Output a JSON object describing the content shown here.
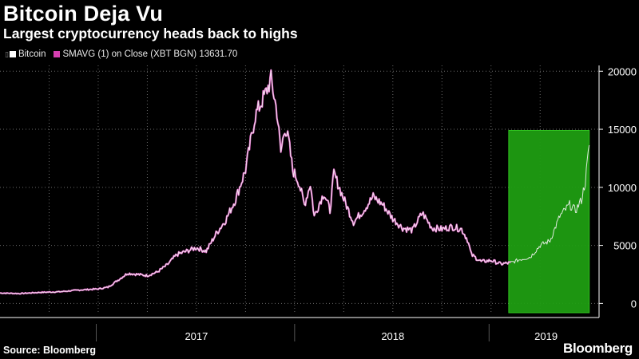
{
  "title": "Bitcoin Deja Vu",
  "subtitle": "Largest cryptocurrency heads back to highs",
  "legend": {
    "marker": "▯",
    "bitcoin_label": "Bitcoin",
    "smavg_label": "SMAVG (1)  on Close (XBT BGN) 13631.70",
    "bitcoin_color": "#ffffff",
    "smavg_color": "#d63fb0"
  },
  "source": "Source: Bloomberg",
  "brand": "Bloomberg",
  "colors": {
    "background": "#000000",
    "grid": "#6a6a6a",
    "highlight_fill": "#1f9d12",
    "highlight_stroke": "#2fc21f",
    "line_white": "#f4f4f4",
    "line_pink": "#de5fc4"
  },
  "chart_data": {
    "type": "line",
    "title": "Bitcoin Deja Vu",
    "subtitle": "Largest cryptocurrency heads back to highs",
    "xlabel": "",
    "ylabel": "",
    "xlim": [
      2016.5,
      2019.55
    ],
    "ylim": [
      -800,
      20500
    ],
    "yticks": [
      0,
      5000,
      10000,
      15000,
      20000
    ],
    "ytick_labels": [
      "0",
      "5000",
      "10000",
      "15000",
      "20000"
    ],
    "xtick_labels": [
      {
        "label": "2017",
        "value": 2017.5
      },
      {
        "label": "2018",
        "value": 2018.5
      },
      {
        "label": "2019",
        "value": 2019.28
      }
    ],
    "year_separators": [
      2016.99,
      2018.0,
      2018.99
    ],
    "vertical_gridlines": [
      2016.75,
      2017.0,
      2017.25,
      2017.5,
      2017.75,
      2018.0,
      2018.25,
      2018.5,
      2018.75,
      2019.0,
      2019.25
    ],
    "highlight_region": {
      "x": [
        2019.09,
        2019.5
      ],
      "y": [
        -800,
        14900
      ]
    },
    "series": [
      {
        "name": "Bitcoin",
        "color": "#ffffff",
        "x": [
          2016.5,
          2016.6,
          2016.7,
          2016.8,
          2016.9,
          2017.0,
          2017.05,
          2017.1,
          2017.15,
          2017.2,
          2017.25,
          2017.3,
          2017.35,
          2017.4,
          2017.45,
          2017.5,
          2017.55,
          2017.6,
          2017.65,
          2017.7,
          2017.75,
          2017.8,
          2017.85,
          2017.88,
          2017.91,
          2017.93,
          2017.95,
          2017.97,
          2017.99,
          2018.02,
          2018.05,
          2018.08,
          2018.1,
          2018.13,
          2018.15,
          2018.18,
          2018.2,
          2018.25,
          2018.3,
          2018.35,
          2018.4,
          2018.45,
          2018.5,
          2018.55,
          2018.6,
          2018.65,
          2018.7,
          2018.75,
          2018.8,
          2018.85,
          2018.88,
          2018.9,
          2018.95,
          2019.0,
          2019.05,
          2019.1,
          2019.15,
          2019.2,
          2019.25,
          2019.3,
          2019.35,
          2019.4,
          2019.43,
          2019.46,
          2019.48,
          2019.5
        ],
        "values": [
          900,
          850,
          950,
          1000,
          1150,
          1250,
          1400,
          2000,
          2600,
          2500,
          2400,
          2700,
          3300,
          4200,
          4500,
          4800,
          4500,
          6000,
          7200,
          9000,
          11500,
          16200,
          18000,
          19300,
          16500,
          13000,
          15200,
          14000,
          11500,
          10500,
          8500,
          10300,
          7500,
          8800,
          9500,
          8000,
          11200,
          9000,
          7000,
          8000,
          9200,
          8500,
          7300,
          6500,
          6300,
          7800,
          6500,
          6400,
          6600,
          6400,
          5500,
          4200,
          3600,
          3700,
          3400,
          3500,
          3800,
          4000,
          5000,
          5400,
          7500,
          8500,
          8000,
          8900,
          10500,
          13631.7
        ]
      },
      {
        "name": "SMAVG (1)  on Close (XBT BGN) 13631.70",
        "color": "#d63fb0",
        "x": [
          2016.5,
          2016.6,
          2016.7,
          2016.8,
          2016.9,
          2017.0,
          2017.05,
          2017.1,
          2017.15,
          2017.2,
          2017.25,
          2017.3,
          2017.35,
          2017.4,
          2017.45,
          2017.5,
          2017.55,
          2017.6,
          2017.65,
          2017.7,
          2017.75,
          2017.8,
          2017.85,
          2017.88,
          2017.91,
          2017.93,
          2017.95,
          2017.97,
          2017.99,
          2018.02,
          2018.05,
          2018.08,
          2018.1,
          2018.13,
          2018.15,
          2018.18,
          2018.2,
          2018.25,
          2018.3,
          2018.35,
          2018.4,
          2018.45,
          2018.5,
          2018.55,
          2018.6,
          2018.65,
          2018.7,
          2018.75,
          2018.8,
          2018.85,
          2018.88,
          2018.9,
          2018.95,
          2019.0,
          2019.05,
          2019.1
        ],
        "values": [
          900,
          850,
          950,
          1000,
          1150,
          1250,
          1400,
          2000,
          2600,
          2500,
          2400,
          2700,
          3300,
          4200,
          4500,
          4800,
          4500,
          6000,
          7200,
          9000,
          11500,
          16200,
          18000,
          19300,
          16500,
          13000,
          15200,
          14000,
          11500,
          10500,
          8500,
          10300,
          7500,
          8800,
          9500,
          8000,
          11200,
          9000,
          7000,
          8000,
          9200,
          8500,
          7300,
          6500,
          6300,
          7800,
          6500,
          6400,
          6600,
          6400,
          5500,
          4200,
          3600,
          3700,
          3400,
          3500
        ]
      }
    ]
  }
}
